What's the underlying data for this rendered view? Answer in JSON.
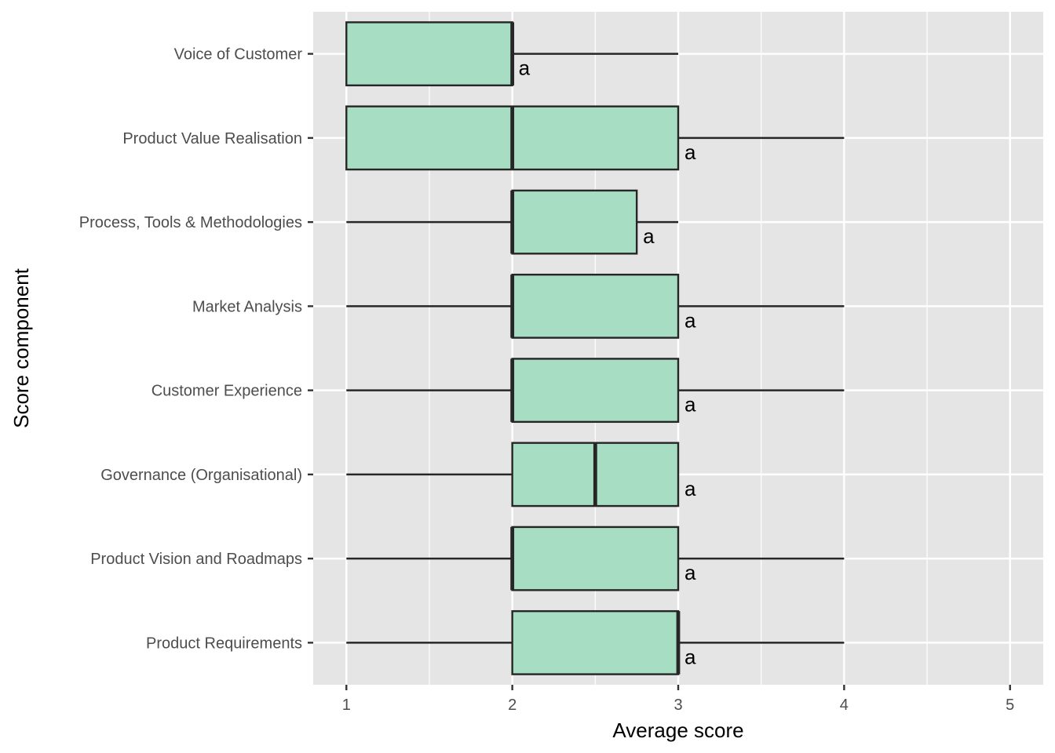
{
  "chart_data": {
    "type": "boxplot",
    "orientation": "horizontal",
    "xlabel": "Average score",
    "ylabel": "Score component",
    "xlim": [
      0.8,
      5.2
    ],
    "x_ticks": [
      "1",
      "2",
      "3",
      "4",
      "5"
    ],
    "grid": true,
    "legend": "none",
    "colors": {
      "panel": "#e5e5e5",
      "grid": "#ffffff",
      "box_fill": "#a6ddc3",
      "box_stroke": "#262626",
      "text": "#4d4d4d"
    },
    "categories": [
      "Voice of Customer",
      "Product Value Realisation",
      "Process, Tools & Methodologies",
      "Market Analysis",
      "Customer Experience",
      "Governance (Organisational)",
      "Product Vision and Roadmaps",
      "Product Requirements"
    ],
    "boxes": [
      {
        "category": "Voice of Customer",
        "min": 1,
        "q1": 1,
        "median": 2,
        "q3": 2,
        "max": 3,
        "label": "a"
      },
      {
        "category": "Product Value Realisation",
        "min": 1,
        "q1": 1,
        "median": 2,
        "q3": 3,
        "max": 4,
        "label": "a"
      },
      {
        "category": "Process, Tools & Methodologies",
        "min": 1,
        "q1": 2,
        "median": 2,
        "q3": 2.75,
        "max": 3,
        "label": "a"
      },
      {
        "category": "Market Analysis",
        "min": 1,
        "q1": 2,
        "median": 2,
        "q3": 3,
        "max": 4,
        "label": "a"
      },
      {
        "category": "Customer Experience",
        "min": 1,
        "q1": 2,
        "median": 2,
        "q3": 3,
        "max": 4,
        "label": "a"
      },
      {
        "category": "Governance (Organisational)",
        "min": 1,
        "q1": 2,
        "median": 2.5,
        "q3": 3,
        "max": 3,
        "label": "a"
      },
      {
        "category": "Product Vision and Roadmaps",
        "min": 1,
        "q1": 2,
        "median": 2,
        "q3": 3,
        "max": 4,
        "label": "a"
      },
      {
        "category": "Product Requirements",
        "min": 1,
        "q1": 2,
        "median": 3,
        "q3": 3,
        "max": 4,
        "label": "a"
      }
    ]
  }
}
